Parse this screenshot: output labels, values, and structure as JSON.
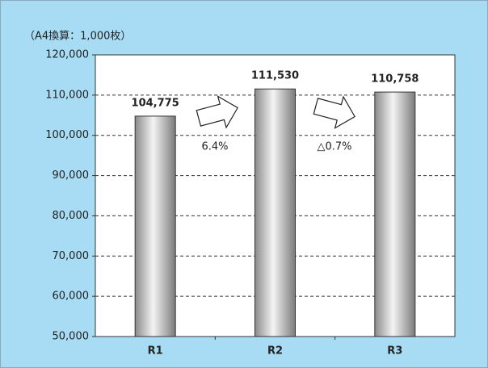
{
  "chart_data": {
    "type": "bar",
    "subtitle": "（A4換算：1,000枚）",
    "categories": [
      "R1",
      "R2",
      "R3"
    ],
    "values": [
      104775,
      111530,
      110758
    ],
    "value_labels": [
      "104,775",
      "111,530",
      "110,758"
    ],
    "color": "#b8b8b8",
    "ylim": [
      50000,
      120000
    ],
    "yticks": [
      {
        "value": 50000,
        "label": "50,000"
      },
      {
        "value": 60000,
        "label": "60,000"
      },
      {
        "value": 70000,
        "label": "70,000"
      },
      {
        "value": 80000,
        "label": "80,000"
      },
      {
        "value": 90000,
        "label": "90,000"
      },
      {
        "value": 100000,
        "label": "100,000"
      },
      {
        "value": 110000,
        "label": "110,000"
      },
      {
        "value": 120000,
        "label": "120,000"
      }
    ],
    "grid": true,
    "annotations": [
      "6.4%",
      "△0.7%"
    ]
  }
}
